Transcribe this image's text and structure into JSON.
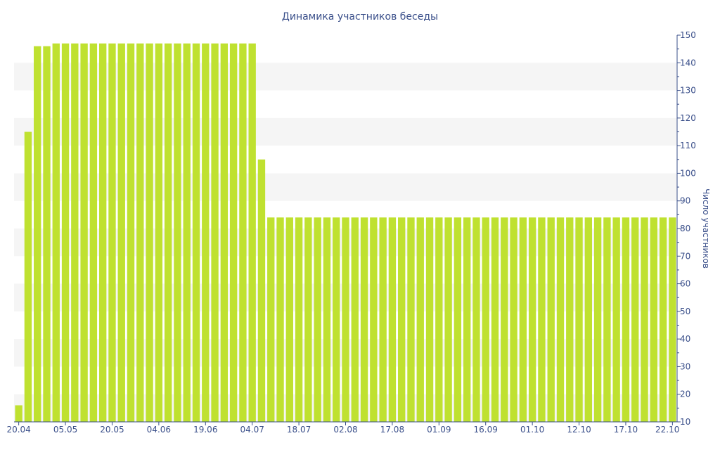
{
  "chart_data": {
    "type": "bar",
    "title": "Динамика участников беседы",
    "ylabel": "Число участников",
    "xlabel": "",
    "ylim": [
      10,
      150
    ],
    "yticks": [
      10,
      20,
      30,
      40,
      50,
      60,
      70,
      80,
      90,
      100,
      110,
      120,
      130,
      140,
      150
    ],
    "y_axis_side": "right",
    "grid": "alternating horizontal bands",
    "x_tick_labels": [
      "20.04",
      "05.05",
      "20.05",
      "04.06",
      "19.06",
      "04.07",
      "18.07",
      "02.08",
      "17.08",
      "01.09",
      "16.09",
      "01.10",
      "12.10",
      "17.10",
      "22.10"
    ],
    "x_tick_bar_index": [
      0,
      5,
      10,
      15,
      20,
      25,
      30,
      35,
      40,
      45,
      50,
      55,
      60,
      65,
      70
    ],
    "bar_color": "#bfe130",
    "text_color": "#3a4f8a",
    "band_color": "#f5f5f5",
    "values": [
      16,
      115,
      146,
      146,
      147,
      147,
      147,
      147,
      147,
      147,
      147,
      147,
      147,
      147,
      147,
      147,
      147,
      147,
      147,
      147,
      147,
      147,
      147,
      147,
      147,
      147,
      105,
      84,
      84,
      84,
      84,
      84,
      84,
      84,
      84,
      84,
      84,
      84,
      84,
      84,
      84,
      84,
      84,
      84,
      84,
      84,
      84,
      84,
      84,
      84,
      84,
      84,
      84,
      84,
      84,
      84,
      84,
      84,
      84,
      84,
      84,
      84,
      84,
      84,
      84,
      84,
      84,
      84,
      84,
      84,
      84
    ]
  }
}
